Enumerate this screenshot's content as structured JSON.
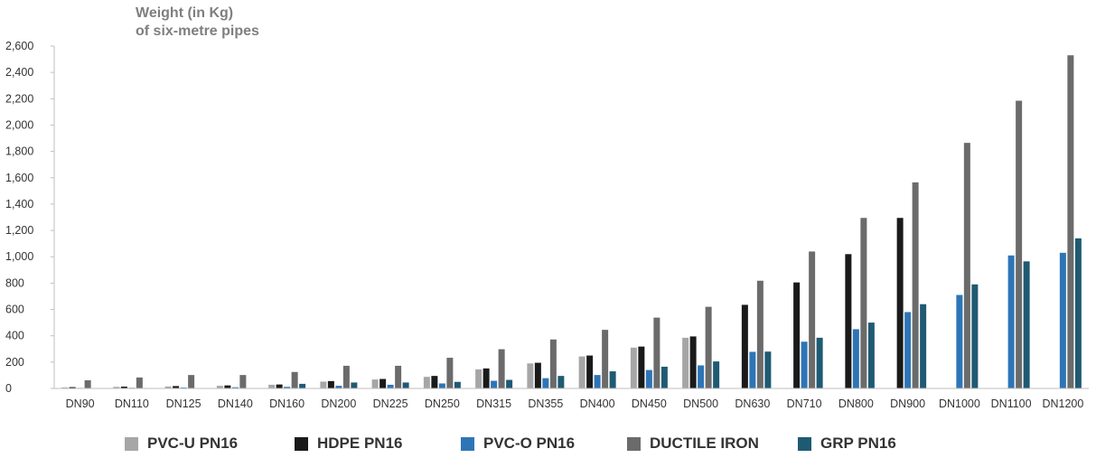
{
  "chart_data": {
    "type": "bar",
    "title": "Weight (in Kg)",
    "subtitle": "of six-metre pipes",
    "xlabel": "",
    "ylabel": "",
    "ylim": [
      0,
      2600
    ],
    "yticks": [
      0,
      200,
      400,
      600,
      800,
      1000,
      1200,
      1400,
      1600,
      1800,
      2000,
      2200,
      2400,
      2600
    ],
    "ytick_labels": [
      "0",
      "200",
      "400",
      "600",
      "800",
      "1,000",
      "1,200",
      "1,400",
      "1,600",
      "1,800",
      "2,000",
      "2,200",
      "2,400",
      "2,600"
    ],
    "grid": false,
    "legend_position": "bottom",
    "categories": [
      "DN90",
      "DN110",
      "DN125",
      "DN140",
      "DN160",
      "DN200",
      "DN225",
      "DN250",
      "DN315",
      "DN355",
      "DN400",
      "DN450",
      "DN500",
      "DN630",
      "DN710",
      "DN800",
      "DN900",
      "DN1000",
      "DN1100",
      "DN1200"
    ],
    "series": [
      {
        "name": "PVC-U PN16",
        "color": "#a6a6a6",
        "values": [
          8,
          12,
          15,
          20,
          28,
          52,
          68,
          88,
          145,
          190,
          243,
          310,
          385,
          null,
          null,
          null,
          null,
          null,
          null,
          null
        ]
      },
      {
        "name": "HDPE PN16",
        "color": "#1a1a1a",
        "values": [
          10,
          14,
          18,
          23,
          30,
          56,
          72,
          95,
          152,
          195,
          250,
          318,
          395,
          635,
          805,
          1020,
          1295,
          null,
          null,
          null
        ]
      },
      {
        "name": "PVC-O PN16",
        "color": "#2e75b6",
        "values": [
          4,
          5,
          7,
          9,
          12,
          20,
          28,
          38,
          58,
          78,
          102,
          140,
          175,
          278,
          355,
          450,
          580,
          710,
          1010,
          1030
        ]
      },
      {
        "name": "DUCTILE IRON",
        "color": "#6b6b6b",
        "values": [
          62,
          83,
          102,
          102,
          125,
          172,
          172,
          233,
          298,
          372,
          445,
          538,
          620,
          818,
          1040,
          1295,
          1565,
          1865,
          2185,
          2530
        ]
      },
      {
        "name": "GRP PN16",
        "color": "#1f5a73",
        "values": [
          null,
          null,
          null,
          null,
          35,
          45,
          45,
          50,
          65,
          95,
          130,
          165,
          205,
          280,
          385,
          500,
          640,
          790,
          965,
          1140
        ]
      }
    ]
  }
}
